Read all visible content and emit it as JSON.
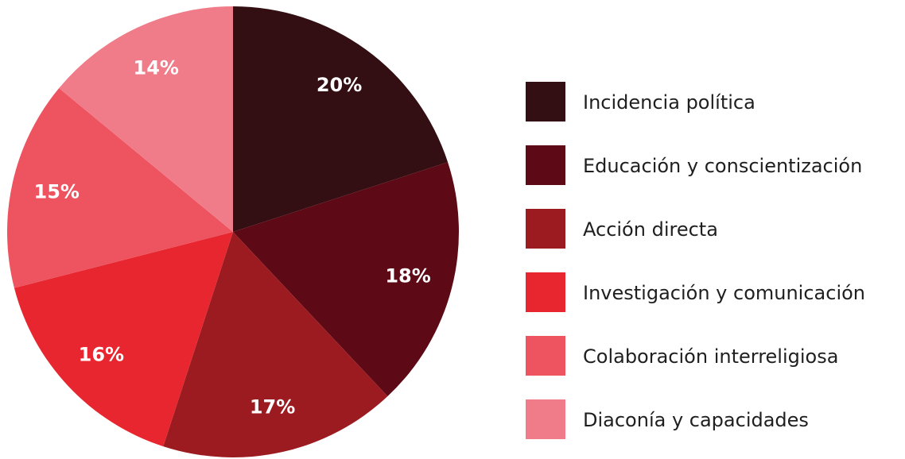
{
  "chart_data": {
    "type": "pie",
    "categories": [
      "Incidencia política",
      "Educación y conscientización",
      "Acción directa",
      "Investigación y comunicación",
      "Colaboración interreligiosa",
      "Diaconía y capacidades"
    ],
    "values": [
      20,
      18,
      17,
      16,
      15,
      14
    ],
    "value_labels": [
      "20%",
      "18%",
      "17%",
      "16%",
      "15%",
      "14%"
    ],
    "colors": [
      "#330f13",
      "#5e0916",
      "#9c1b20",
      "#e8262f",
      "#ee5360",
      "#f07c89"
    ],
    "legend": "right"
  }
}
